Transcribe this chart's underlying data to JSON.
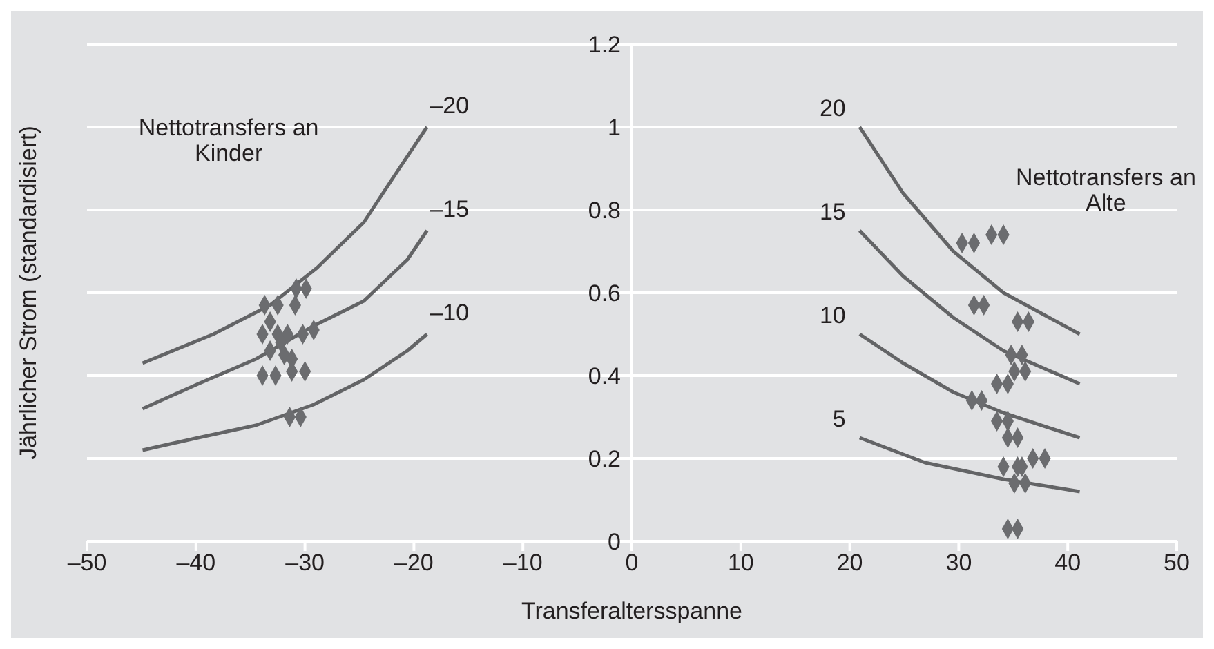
{
  "chart_data": {
    "type": "line",
    "xlabel": "Transferaltersspanne",
    "ylabel": "Jährlicher Strom (standardisiert)",
    "annotations": [
      "Nettotransfers an Kinder",
      "Nettotransfers an Alte"
    ],
    "xlim": [
      -50,
      50
    ],
    "xticks": [
      {
        "value": -50,
        "label": "–50"
      },
      {
        "value": -40,
        "label": "–40"
      },
      {
        "value": -30,
        "label": "–30"
      },
      {
        "value": -20,
        "label": "–20"
      },
      {
        "value": -10,
        "label": "–10"
      },
      0,
      10,
      20,
      30,
      40,
      50
    ],
    "ylim": [
      0,
      1.2
    ],
    "yticks": [
      0,
      0.2,
      0.4,
      0.6,
      0.8,
      1,
      1.2
    ],
    "grid": "y",
    "legend": false,
    "series": [
      {
        "name": "–20",
        "color": "#636466",
        "x": [
          -44.9,
          -38.4,
          -33.2,
          -28.9,
          -24.6,
          -21.6,
          -18.8
        ],
        "values": [
          0.43,
          0.5,
          0.57,
          0.66,
          0.77,
          0.89,
          1.0
        ]
      },
      {
        "name": "–15",
        "color": "#636466",
        "x": [
          -44.9,
          -39.8,
          -34.5,
          -29.2,
          -24.6,
          -20.6,
          -18.8
        ],
        "values": [
          0.32,
          0.38,
          0.44,
          0.52,
          0.58,
          0.68,
          0.75
        ]
      },
      {
        "name": "–10",
        "color": "#636466",
        "x": [
          -44.9,
          -39.8,
          -34.5,
          -29.2,
          -24.6,
          -20.6,
          -18.8
        ],
        "values": [
          0.22,
          0.25,
          0.28,
          0.33,
          0.39,
          0.46,
          0.5
        ]
      },
      {
        "name": "20",
        "color": "#636466",
        "x": [
          20.9,
          24.9,
          29.5,
          34.1,
          41.1
        ],
        "values": [
          1.0,
          0.84,
          0.7,
          0.6,
          0.5
        ]
      },
      {
        "name": "15",
        "color": "#636466",
        "x": [
          20.9,
          24.9,
          29.5,
          34.1,
          41.1
        ],
        "values": [
          0.75,
          0.64,
          0.54,
          0.46,
          0.38
        ]
      },
      {
        "name": "10",
        "color": "#636466",
        "x": [
          20.9,
          24.9,
          29.5,
          34.1,
          41.1
        ],
        "values": [
          0.5,
          0.43,
          0.36,
          0.31,
          0.25
        ]
      },
      {
        "name": "5",
        "color": "#636466",
        "x": [
          20.9,
          26.9,
          34.1,
          41.1
        ],
        "values": [
          0.25,
          0.19,
          0.15,
          0.12
        ]
      },
      {
        "type": "scatter",
        "color": "#6b6c6f",
        "marker": "diamond",
        "x": [
          -30.8,
          -29.9,
          -33.7,
          -32.5,
          -30.9,
          -33.2,
          -33.9,
          -32.5,
          -31.6,
          -30.2,
          -29.2,
          -33.2,
          -32.2,
          -31.9,
          -31.2,
          -33.9,
          -32.7,
          -31.2,
          -30.0,
          -31.4,
          -30.4,
          30.3,
          31.4,
          33.0,
          34.1,
          31.4,
          32.3,
          35.4,
          36.4,
          34.8,
          35.8,
          35.1,
          36.1,
          33.5,
          34.5,
          31.2,
          32.1,
          33.5,
          34.5,
          34.5,
          35.4,
          34.1,
          35.4,
          35.8,
          36.8,
          37.9,
          35.1,
          36.1,
          34.5,
          35.4
        ],
        "values": [
          0.61,
          0.61,
          0.57,
          0.57,
          0.57,
          0.53,
          0.5,
          0.5,
          0.5,
          0.5,
          0.51,
          0.46,
          0.48,
          0.45,
          0.44,
          0.4,
          0.4,
          0.41,
          0.41,
          0.3,
          0.3,
          0.72,
          0.72,
          0.74,
          0.74,
          0.57,
          0.57,
          0.53,
          0.53,
          0.45,
          0.45,
          0.41,
          0.41,
          0.38,
          0.38,
          0.34,
          0.34,
          0.29,
          0.29,
          0.25,
          0.25,
          0.18,
          0.18,
          0.18,
          0.2,
          0.2,
          0.14,
          0.14,
          0.03,
          0.03
        ]
      }
    ]
  }
}
